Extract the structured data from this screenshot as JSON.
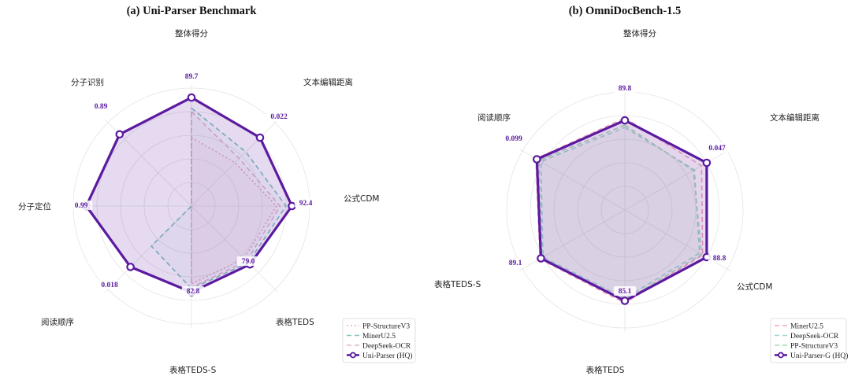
{
  "chart_data": [
    {
      "type": "radar",
      "title": "(a) Uni-Parser Benchmark",
      "axes": [
        "整体得分",
        "文本编辑距离",
        "公式CDM",
        "表格TEDS",
        "表格TEDS-S",
        "阅读顺序",
        "分子定位",
        "分子识别"
      ],
      "value_labels": [
        "89.7",
        "0.022",
        "92.4",
        "79.0",
        "82.8",
        "0.018",
        "0.99",
        "0.89"
      ],
      "rmax": 1.0,
      "grid": true,
      "legend_position": "bottom-right",
      "series": [
        {
          "name": "PP-StructureV3",
          "color": "#f2a5bd",
          "style": "dotted",
          "values": [
            0.58,
            0.52,
            0.72,
            0.63,
            0.66,
            0.0,
            0.0,
            0.0
          ]
        },
        {
          "name": "MinerU2.5",
          "color": "#7fc4c0",
          "style": "dashed",
          "values": [
            0.83,
            0.65,
            0.8,
            0.68,
            0.7,
            0.48,
            0.0,
            0.0
          ]
        },
        {
          "name": "DeepSeek-OCR",
          "color": "#e0b6cf",
          "style": "dashed",
          "values": [
            0.8,
            0.57,
            0.75,
            0.66,
            0.69,
            0.0,
            0.0,
            0.0
          ]
        },
        {
          "name": "Uni-Parser (HQ)",
          "color": "#5b1aa0",
          "style": "solid",
          "values": [
            0.92,
            0.82,
            0.85,
            0.7,
            0.73,
            0.73,
            0.89,
            0.86
          ]
        }
      ]
    },
    {
      "type": "radar",
      "title": "(b) OmniDocBench-1.5",
      "axes": [
        "整体得分",
        "文本编辑距离",
        "公式CDM",
        "表格TEDS",
        "表格TEDS-S",
        "阅读顺序"
      ],
      "value_labels": [
        "89.8",
        "0.047",
        "88.8",
        "85.1",
        "89.1",
        "0.099"
      ],
      "rmax": 1.0,
      "grid": true,
      "legend_position": "bottom-right",
      "series": [
        {
          "name": "MinerU2.5",
          "color": "#f2a5bd",
          "style": "dashed",
          "values": [
            0.78,
            0.75,
            0.76,
            0.79,
            0.83,
            0.87
          ]
        },
        {
          "name": "DeepSeek-OCR",
          "color": "#9fd4d2",
          "style": "dashed",
          "values": [
            0.7,
            0.68,
            0.73,
            0.75,
            0.8,
            0.82
          ]
        },
        {
          "name": "PP-StructureV3",
          "color": "#a8d8b0",
          "style": "dashed",
          "values": [
            0.72,
            0.67,
            0.75,
            0.77,
            0.81,
            0.84
          ]
        },
        {
          "name": "Uni-Parser-G (HQ)",
          "color": "#5b1aa0",
          "style": "solid",
          "values": [
            0.76,
            0.8,
            0.8,
            0.77,
            0.82,
            0.86
          ]
        }
      ]
    }
  ]
}
